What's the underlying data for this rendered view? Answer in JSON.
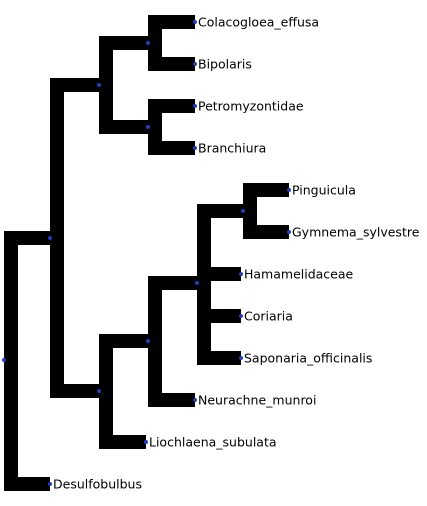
{
  "tree": {
    "branch_color": "#000000",
    "node_dot_color": "#1f3fbf",
    "background": "#ffffff",
    "leaves": [
      {
        "id": "colacogloea",
        "label": "Colacogloea_effusa"
      },
      {
        "id": "bipolaris",
        "label": "Bipolaris"
      },
      {
        "id": "petromyzontidae",
        "label": "Petromyzontidae"
      },
      {
        "id": "branchiura",
        "label": "Branchiura"
      },
      {
        "id": "pinguicula",
        "label": "Pinguicula"
      },
      {
        "id": "gymnema",
        "label": "Gymnema_sylvestre"
      },
      {
        "id": "hamamelidaceae",
        "label": "Hamamelidaceae"
      },
      {
        "id": "coriaria",
        "label": "Coriaria"
      },
      {
        "id": "saponaria",
        "label": "Saponaria_officinalis"
      },
      {
        "id": "neurachne",
        "label": "Neurachne_munroi"
      },
      {
        "id": "liochlaena",
        "label": "Liochlaena_subulata"
      },
      {
        "id": "desulfobulbus",
        "label": "Desulfobulbus"
      }
    ]
  }
}
